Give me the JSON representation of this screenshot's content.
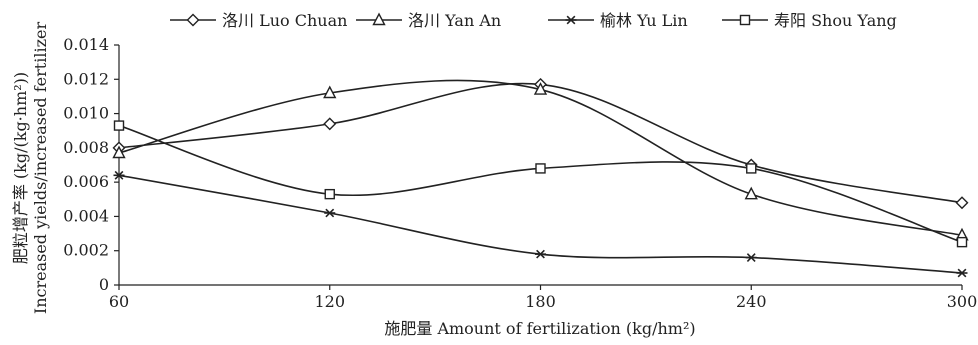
{
  "chart_data": {
    "type": "line",
    "x": [
      60,
      120,
      180,
      240,
      300
    ],
    "xlim": [
      60,
      300
    ],
    "ylim": [
      0,
      0.014
    ],
    "yticks": [
      "0",
      "0.002",
      "0.004",
      "0.006",
      "0.008",
      "0.010",
      "0.012",
      "0.014"
    ],
    "xticks": [
      "60",
      "120",
      "180",
      "240",
      "300"
    ],
    "xlabel": "施肥量 Amount of fertilization (kg/hm²)",
    "ylabel_cn": "肥粒增产率 (kg/(kg·hm²))",
    "ylabel_en": "Increased yields/increased fertilizer",
    "legend_position": "top",
    "grid": false,
    "series": [
      {
        "name": "洛川 Luo Chuan",
        "marker": "diamond",
        "values": [
          0.008,
          0.0094,
          0.0117,
          0.007,
          0.0048
        ]
      },
      {
        "name": "洛川 Yan An",
        "marker": "triangle",
        "values": [
          0.0077,
          0.0112,
          0.0114,
          0.0053,
          0.0029
        ]
      },
      {
        "name": "榆林 Yu Lin",
        "marker": "asterisk",
        "values": [
          0.0064,
          0.0042,
          0.0018,
          0.0016,
          0.0007
        ]
      },
      {
        "name": "寿阳 Shou Yang",
        "marker": "square",
        "values": [
          0.0093,
          0.0053,
          0.0068,
          0.0068,
          0.0025
        ]
      }
    ]
  }
}
